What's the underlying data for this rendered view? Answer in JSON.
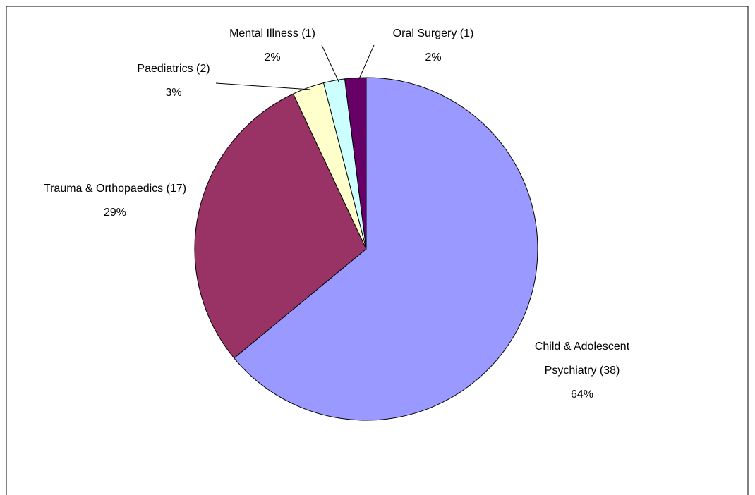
{
  "chart_data": {
    "type": "pie",
    "categories": [
      "Child & Adolescent Psychiatry (38)",
      "Trauma & Orthopaedics (17)",
      "Paediatrics (2)",
      "Mental Illness (1)",
      "Oral Surgery (1)"
    ],
    "values": [
      64,
      29,
      3,
      2,
      2
    ],
    "value_labels": [
      "64%",
      "29%",
      "3%",
      "2%",
      "2%"
    ],
    "colors": [
      "#9999ff",
      "#993366",
      "#ffffcc",
      "#ccffff",
      "#660066"
    ]
  }
}
